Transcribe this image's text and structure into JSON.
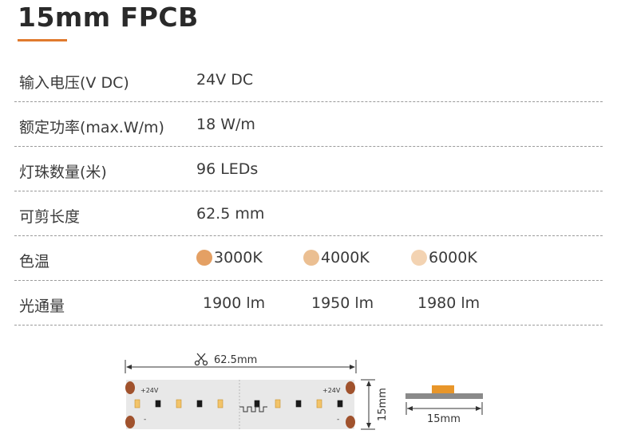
{
  "title": "15mm FPCB",
  "accent_color": "#e07a2e",
  "specs": [
    {
      "label": "输入电压(V DC)",
      "value": "24V DC"
    },
    {
      "label": "额定功率(max.W/m)",
      "value": "18 W/m"
    },
    {
      "label": "灯珠数量(米)",
      "value": "96 LEDs"
    },
    {
      "label": "可剪长度",
      "value": "62.5 mm"
    }
  ],
  "color_temp": {
    "label": "色温",
    "options": [
      {
        "value": "3000K",
        "color": "#e4a064"
      },
      {
        "value": "4000K",
        "color": "#ebbf92"
      },
      {
        "value": "6000K",
        "color": "#f3d3b2"
      }
    ]
  },
  "luminous_flux": {
    "label": "光通量",
    "values": [
      "1900 lm",
      "1950 lm",
      "1980 lm"
    ]
  },
  "diagram": {
    "cut_length": "62.5mm",
    "scissors_icon": "scissors-icon",
    "height_label": "15mm",
    "width_label": "15mm",
    "pad_plus": "+24V",
    "pad_minus": "-"
  }
}
